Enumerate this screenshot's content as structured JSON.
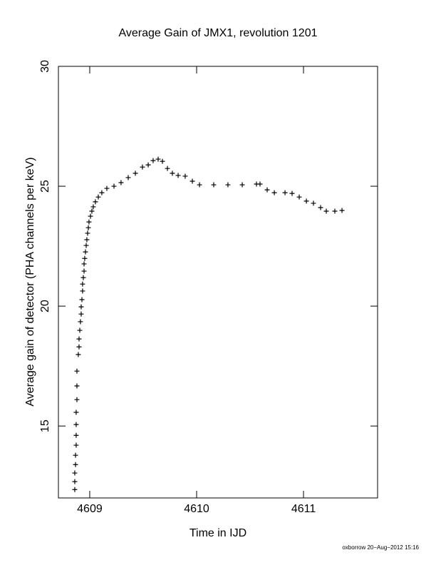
{
  "chart_data": {
    "type": "scatter",
    "title": "Average Gain of JMX1, revolution 1201",
    "x_label": "Time in IJD",
    "y_label": "Average gain of detector (PHA channels per keV)",
    "footer": "oxborrow 20−Aug−2012 15:16",
    "xlim": [
      4608.707,
      4611.693
    ],
    "ylim": [
      12,
      30
    ],
    "xticks": [
      4609,
      4610,
      4611
    ],
    "yticks": [
      15,
      20,
      25,
      30
    ],
    "color": "#000000",
    "x": [
      4608.86,
      4608.86,
      4608.86,
      4608.867,
      4608.867,
      4608.873,
      4608.873,
      4608.873,
      4608.873,
      4608.88,
      4608.88,
      4608.88,
      4608.893,
      4608.9,
      4608.9,
      4608.907,
      4608.913,
      4608.92,
      4608.92,
      4608.927,
      4608.933,
      4608.933,
      4608.94,
      4608.947,
      4608.947,
      4608.953,
      4608.96,
      4608.967,
      4608.973,
      4608.98,
      4608.987,
      4608.993,
      4609.007,
      4609.02,
      4609.033,
      4609.053,
      4609.08,
      4609.113,
      4609.16,
      4609.227,
      4609.293,
      4609.36,
      4609.427,
      4609.493,
      4609.547,
      4609.593,
      4609.64,
      4609.68,
      4609.727,
      4609.773,
      4609.827,
      4609.893,
      4609.96,
      4610.027,
      4610.16,
      4610.293,
      4610.427,
      4610.56,
      4610.593,
      4610.66,
      4610.727,
      4610.827,
      4610.893,
      4610.96,
      4611.027,
      4611.093,
      4611.16,
      4611.213,
      4611.293,
      4611.36
    ],
    "y": [
      12.35,
      12.68,
      13.04,
      13.39,
      13.78,
      14.2,
      14.61,
      15.06,
      15.57,
      16.1,
      16.67,
      17.29,
      17.98,
      18.3,
      18.63,
      18.99,
      19.35,
      19.67,
      19.97,
      20.27,
      20.63,
      20.92,
      21.19,
      21.46,
      21.76,
      21.99,
      22.26,
      22.53,
      22.77,
      23.04,
      23.27,
      23.51,
      23.75,
      23.96,
      24.14,
      24.35,
      24.55,
      24.73,
      24.91,
      25.0,
      25.15,
      25.36,
      25.54,
      25.8,
      25.89,
      26.07,
      26.13,
      26.04,
      25.74,
      25.54,
      25.45,
      25.42,
      25.21,
      25.06,
      25.06,
      25.06,
      25.06,
      25.09,
      25.09,
      24.85,
      24.73,
      24.73,
      24.7,
      24.55,
      24.38,
      24.29,
      24.11,
      23.96,
      23.96,
      23.99
    ]
  }
}
